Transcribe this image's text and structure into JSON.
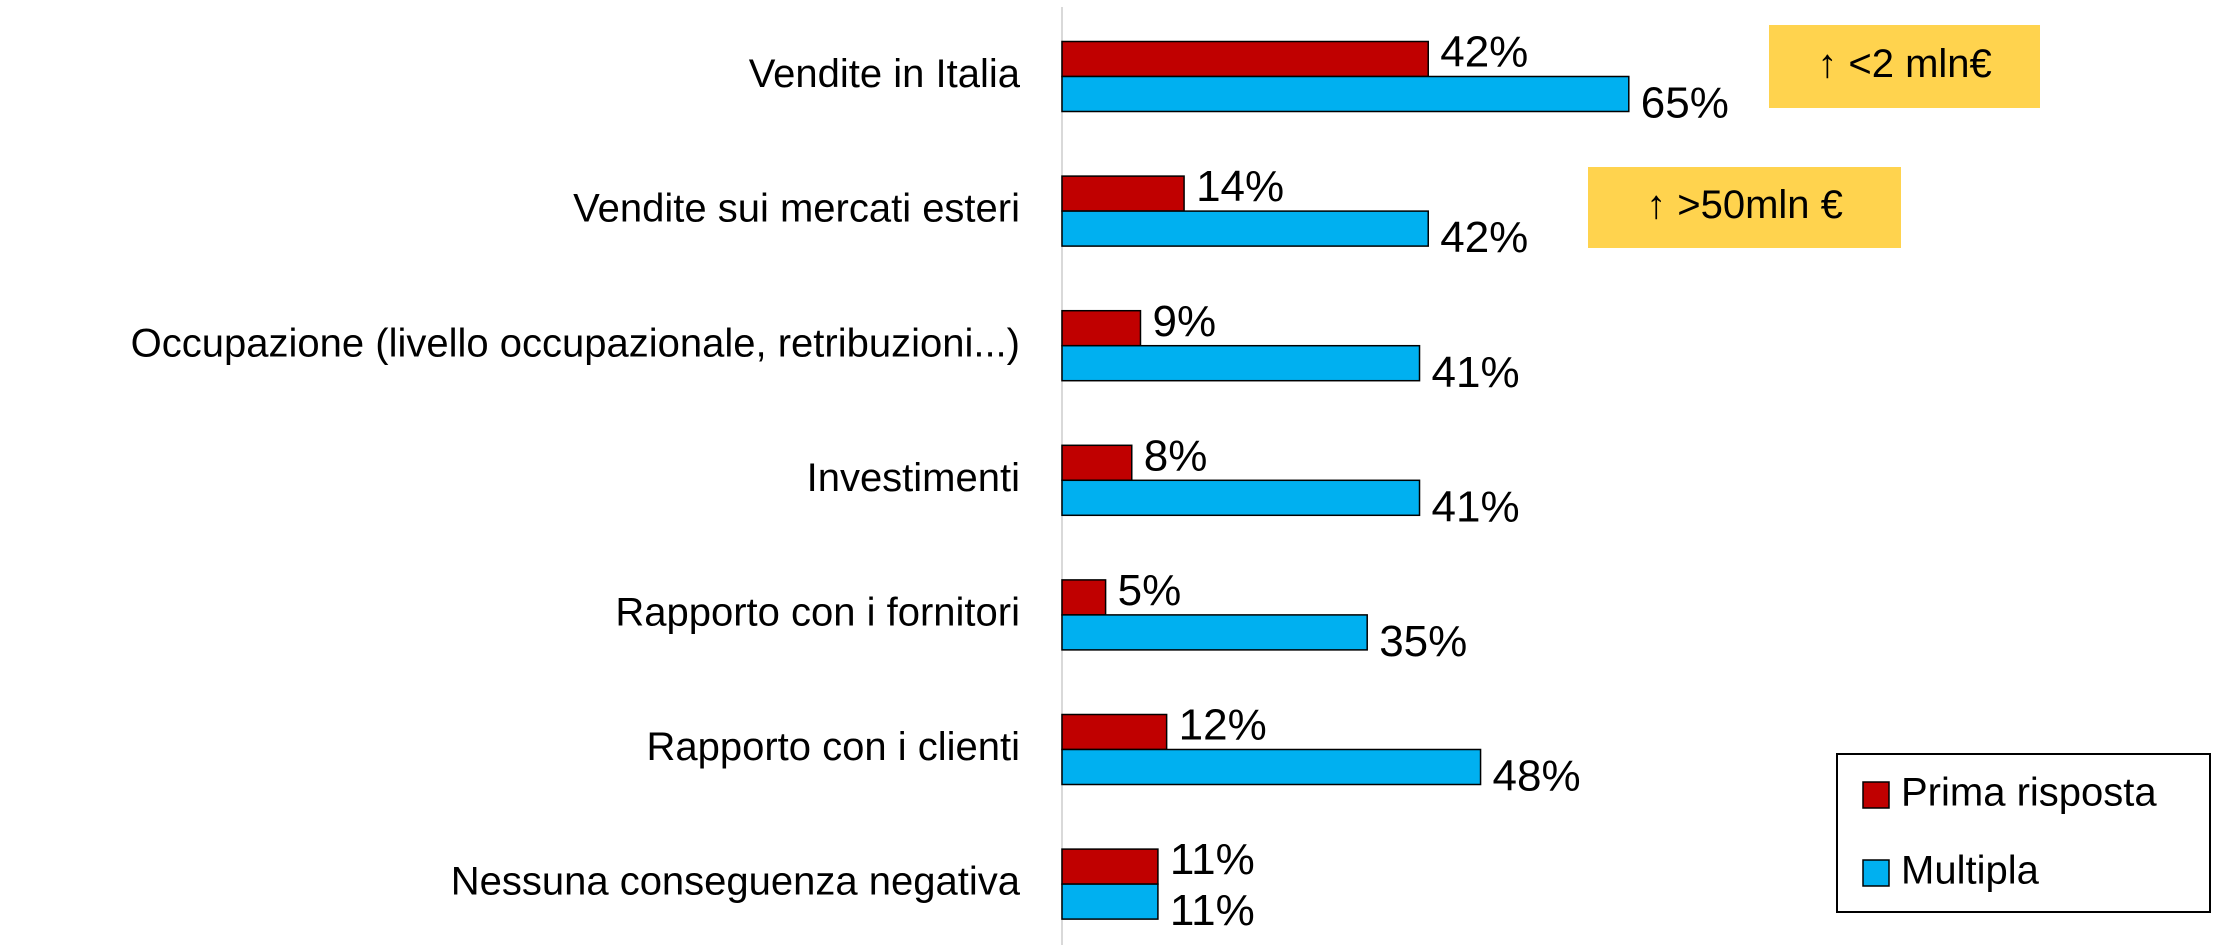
{
  "chart_data": {
    "type": "bar",
    "orientation": "horizontal",
    "categories": [
      "Vendite in Italia",
      "Vendite sui mercati esteri",
      "Occupazione (livello occupazionale, retribuzioni...)",
      "Investimenti",
      "Rapporto con i fornitori",
      "Rapporto con i clienti",
      "Nessuna conseguenza negativa"
    ],
    "series": [
      {
        "name": "Prima risposta",
        "color": "#c00000",
        "values": [
          42,
          14,
          9,
          8,
          5,
          12,
          11
        ],
        "value_labels": [
          "42%",
          "14%",
          "9%",
          "8%",
          "5%",
          "12%",
          "11%"
        ]
      },
      {
        "name": "Multipla",
        "color": "#00b0f0",
        "values": [
          65,
          42,
          41,
          41,
          35,
          48,
          11
        ],
        "value_labels": [
          "65%",
          "42%",
          "41%",
          "41%",
          "35%",
          "48%",
          "11%"
        ]
      }
    ],
    "xlim": [
      0,
      100
    ],
    "annotations": [
      "↑ <2 mln€",
      "↑ >50mln €"
    ],
    "annotation_color": "#ffd34e",
    "legend": "bottom-right"
  }
}
